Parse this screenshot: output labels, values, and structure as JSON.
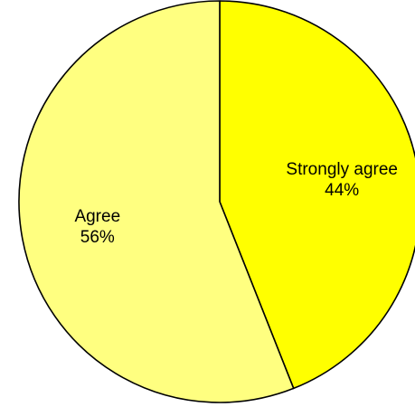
{
  "chart_data": {
    "type": "pie",
    "title": "",
    "start": "top",
    "direction": "clockwise",
    "slices": [
      {
        "label": "Strongly agree",
        "value": 44,
        "value_label": "44%",
        "color": "#ffff00"
      },
      {
        "label": "Agree",
        "value": 56,
        "value_label": "56%",
        "color": "#ffff80"
      }
    ]
  }
}
